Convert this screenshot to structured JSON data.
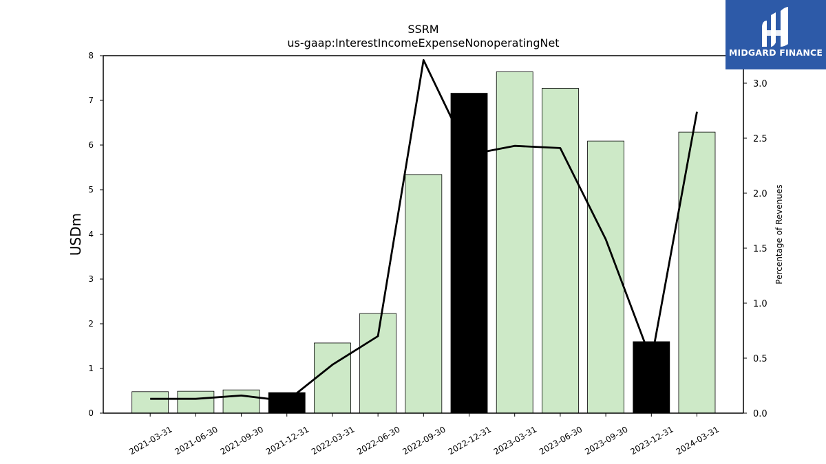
{
  "chart_data": {
    "type": "bar",
    "title": "SSRM",
    "subtitle": "us-gaap:InterestIncomeExpenseNonoperatingNet",
    "ylabel": "USDm",
    "y2label": "Percentage of Revenues",
    "ylim": [
      0,
      8
    ],
    "y2lim": [
      0,
      3.25
    ],
    "yticks": [
      "0",
      "1",
      "2",
      "3",
      "4",
      "5",
      "6",
      "7",
      "8"
    ],
    "y2ticks": [
      "0.0",
      "0.5",
      "1.0",
      "1.5",
      "2.0",
      "2.5",
      "3.0"
    ],
    "categories": [
      "2021-03-31",
      "2021-06-30",
      "2021-09-30",
      "2021-12-31",
      "2022-03-31",
      "2022-06-30",
      "2022-09-30",
      "2022-12-31",
      "2023-03-31",
      "2023-06-30",
      "2023-09-30",
      "2023-12-31",
      "2024-03-31"
    ],
    "series": [
      {
        "type": "bar",
        "values": [
          0.48,
          0.49,
          0.52,
          0.46,
          1.57,
          2.23,
          5.34,
          7.16,
          7.64,
          7.27,
          6.09,
          1.6,
          6.29
        ],
        "colors": [
          "#cde9c7",
          "#cde9c7",
          "#cde9c7",
          "#000000",
          "#cde9c7",
          "#cde9c7",
          "#cde9c7",
          "#000000",
          "#cde9c7",
          "#cde9c7",
          "#cde9c7",
          "#000000",
          "#cde9c7"
        ]
      },
      {
        "type": "line",
        "axis": "right",
        "values": [
          0.13,
          0.13,
          0.16,
          0.11,
          0.44,
          0.7,
          3.21,
          2.35,
          2.43,
          2.41,
          1.58,
          0.48,
          2.74
        ],
        "color": "#000000"
      }
    ],
    "grid": false
  },
  "logo": {
    "text": "MIDGARD FINANCE",
    "color": "#2d5aa8"
  }
}
